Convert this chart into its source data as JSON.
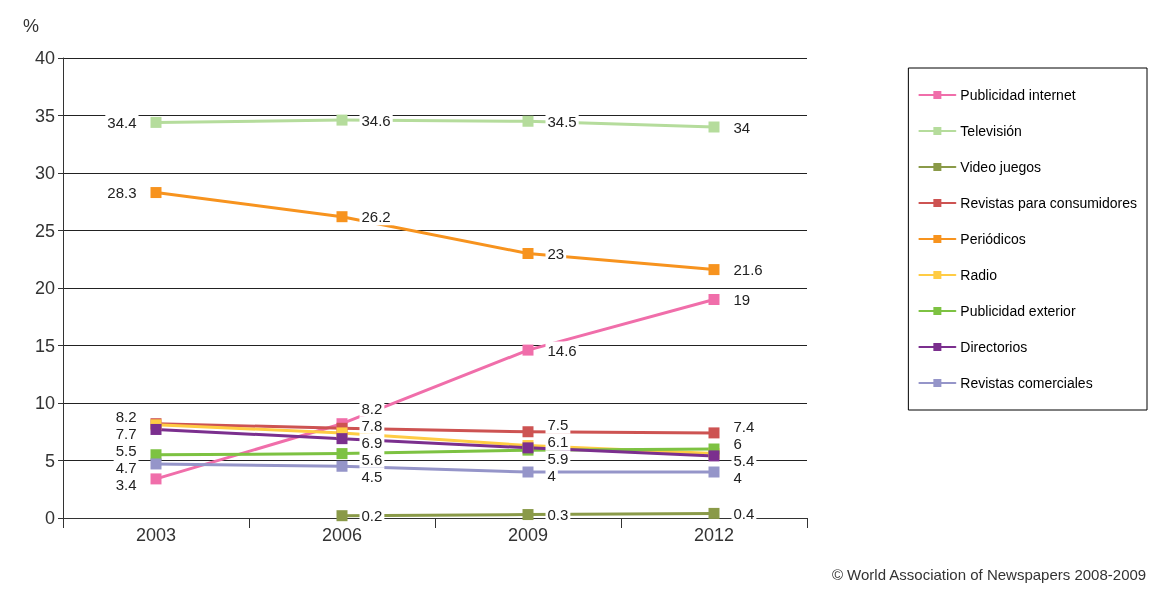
{
  "chart_data": {
    "type": "line",
    "ylabel": "%",
    "categories": [
      "2003",
      "2006",
      "2009",
      "2012"
    ],
    "ylim": [
      0,
      40
    ],
    "yticks": [
      0,
      5,
      10,
      15,
      20,
      25,
      30,
      35,
      40
    ],
    "grid": "y",
    "legend": "right",
    "marker": "square",
    "line_style": "solid",
    "series": [
      {
        "name": "Publicidad internet",
        "color": "#f06eaa",
        "values": [
          3.4,
          8.2,
          14.6,
          19
        ],
        "value_labels": [
          "3.4",
          "8.2",
          "14.6",
          "19"
        ]
      },
      {
        "name": "Televisión",
        "color": "#b5dc9c",
        "values": [
          34.4,
          34.6,
          34.5,
          34
        ],
        "value_labels": [
          "34.4",
          "34.6",
          "34.5",
          "34"
        ]
      },
      {
        "name": "Video juegos",
        "color": "#8a9a48",
        "values": [
          null,
          0.2,
          0.3,
          0.4
        ],
        "value_labels": [
          null,
          "0.2",
          "0.3",
          "0.4"
        ]
      },
      {
        "name": "Revistas para consumidores",
        "color": "#cd5352",
        "values": [
          8.2,
          7.8,
          7.5,
          7.4
        ],
        "value_labels": [
          "8.2",
          "7.8",
          "7.5",
          "7.4"
        ]
      },
      {
        "name": "Periódicos",
        "color": "#f7931e",
        "values": [
          28.3,
          26.2,
          23,
          21.6
        ],
        "value_labels": [
          "28.3",
          "26.2",
          "23",
          "21.6"
        ]
      },
      {
        "name": "Radio",
        "color": "#ffcc44",
        "values": [
          8.1,
          7.4,
          6.3,
          5.6
        ],
        "value_labels": [
          null,
          null,
          null,
          null
        ]
      },
      {
        "name": "Publicidad exterior",
        "color": "#7dc242",
        "values": [
          5.5,
          5.6,
          5.9,
          6
        ],
        "value_labels": [
          "5.5",
          "5.6",
          "5.9",
          "6"
        ]
      },
      {
        "name": "Directorios",
        "color": "#7b2f8e",
        "values": [
          7.7,
          6.9,
          6.1,
          5.4
        ],
        "value_labels": [
          "7.7",
          "6.9",
          "6.1",
          "5.4"
        ]
      },
      {
        "name": "Revistas comerciales",
        "color": "#9595c9",
        "values": [
          4.7,
          4.5,
          4,
          4
        ],
        "value_labels": [
          "4.7",
          "4.5",
          "4",
          "4"
        ]
      }
    ],
    "annotations": [
      "© World Association of Newspapers 2008-2009"
    ]
  }
}
